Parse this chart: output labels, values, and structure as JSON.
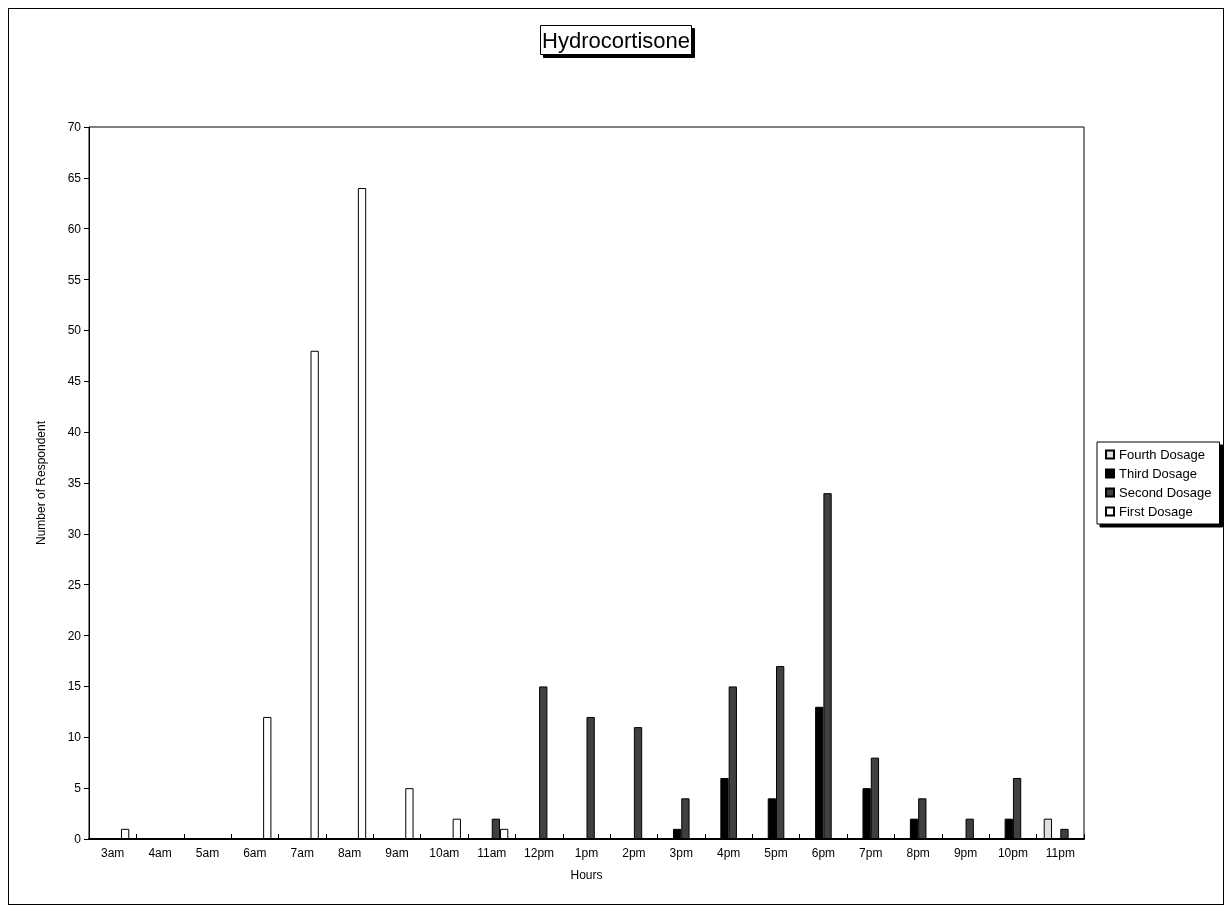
{
  "chart_data": {
    "type": "bar",
    "title": "Hydrocortisone",
    "xlabel": "Hours",
    "ylabel": "Number of Respondent",
    "categories": [
      "3am",
      "4am",
      "5am",
      "6am",
      "7am",
      "8am",
      "9am",
      "10am",
      "11am",
      "12pm",
      "1pm",
      "2pm",
      "3pm",
      "4pm",
      "5pm",
      "6pm",
      "7pm",
      "8pm",
      "9pm",
      "10pm",
      "11pm"
    ],
    "series": [
      {
        "name": "Fourth Dosage",
        "color": "#e0e0e0",
        "values": [
          0,
          0,
          0,
          0,
          0,
          0,
          0,
          0,
          0,
          0,
          0,
          0,
          0,
          0,
          0,
          0,
          0,
          0,
          0,
          0,
          2
        ]
      },
      {
        "name": "Third Dosage",
        "color": "#000000",
        "values": [
          0,
          0,
          0,
          0,
          0,
          0,
          0,
          0,
          0,
          0,
          0,
          0,
          1,
          6,
          4,
          13,
          5,
          2,
          0,
          2,
          0
        ]
      },
      {
        "name": "Second Dosage",
        "color": "#404040",
        "values": [
          0,
          0,
          0,
          0,
          0,
          0,
          0,
          0,
          2,
          15,
          12,
          11,
          4,
          15,
          17,
          34,
          8,
          4,
          2,
          6,
          1
        ]
      },
      {
        "name": "First Dosage",
        "color": "#ffffff",
        "values": [
          1,
          0,
          0,
          12,
          48,
          64,
          5,
          2,
          1,
          0,
          0,
          0,
          0,
          0,
          0,
          0,
          0,
          0,
          0,
          0,
          0
        ]
      }
    ],
    "ylim": [
      0,
      70
    ],
    "yticks": [
      0,
      5,
      10,
      15,
      20,
      25,
      30,
      35,
      40,
      45,
      50,
      55,
      60,
      65,
      70
    ],
    "grid": false,
    "legend": "right"
  }
}
